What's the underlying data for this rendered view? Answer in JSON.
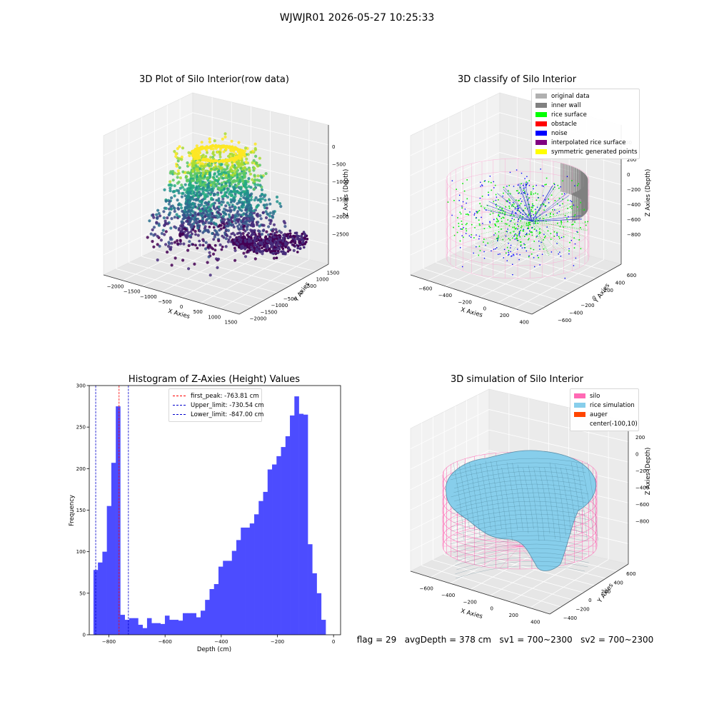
{
  "page": {
    "suptitle": "WJWJR01 2026-05-27 10:25:33",
    "footer": {
      "flag": "flag = 29",
      "avg_depth": "avgDepth = 378 cm",
      "sv1": "sv1 = 700~2300",
      "sv2": "sv2 = 700~2300"
    }
  },
  "chart_data": [
    {
      "type": "scatter",
      "title": "3D Plot of Silo Interior(row data)",
      "xlabel": "X Axies",
      "ylabel": "Y Axies",
      "zlabel": "Z Axies (Depth)",
      "xticks": [
        "−2000",
        "−1500",
        "−1000",
        "−500",
        "0",
        "500",
        "1000",
        "1500"
      ],
      "yticks": [
        "−2000",
        "−1500",
        "−1000",
        "−500",
        "0",
        "500",
        "1000",
        "1500"
      ],
      "zticks": [
        "0",
        "−500",
        "−1000",
        "−1500",
        "−2000",
        "−2500"
      ],
      "xlim": [
        -2000,
        1500
      ],
      "ylim": [
        -2000,
        1500
      ],
      "zlim": [
        -2700,
        0
      ],
      "colormap": "viridis"
    },
    {
      "type": "scatter",
      "title": "3D classify of Silo Interior",
      "xlabel": "X Axies",
      "ylabel": "Y Axies",
      "zlabel": "Z Axies (Depth)",
      "xticks": [
        "−600",
        "−400",
        "−200",
        "0",
        "200",
        "400"
      ],
      "yticks": [
        "−600",
        "−400",
        "−200",
        "0",
        "200",
        "400",
        "600"
      ],
      "zticks": [
        "200",
        "0",
        "−200",
        "−400",
        "−600",
        "−800"
      ],
      "zticks_extra": "00",
      "legend": [
        {
          "label": "original data",
          "color": "#b0b0b0"
        },
        {
          "label": "inner wall",
          "color": "#808080"
        },
        {
          "label": "rice surface",
          "color": "#00ff00"
        },
        {
          "label": "obstacle",
          "color": "#ff0000"
        },
        {
          "label": "noise",
          "color": "#0000ff"
        },
        {
          "label": "interpolated rice surface",
          "color": "#800080"
        },
        {
          "label": "symmetric generated points",
          "color": "#ffff00"
        }
      ],
      "legend_position": "top-right"
    },
    {
      "type": "bar",
      "title": "Histogram of Z-Axies (Height) Values",
      "xlabel": "Depth (cm)",
      "ylabel": "Frequency",
      "xlim": [
        -870,
        25
      ],
      "ylim": [
        0,
        300
      ],
      "xticks": [
        -800,
        -600,
        -400,
        -200,
        0
      ],
      "xtick_labels": [
        "−800",
        "−600",
        "−400",
        "−200",
        "0"
      ],
      "yticks": [
        0,
        50,
        100,
        150,
        200,
        250,
        300
      ],
      "bin_width": 15.9,
      "bin_start": -855,
      "values": [
        78,
        87,
        100,
        155,
        207,
        275,
        24,
        18,
        20,
        20,
        12,
        8,
        20,
        14,
        14,
        13,
        23,
        18,
        18,
        17,
        26,
        26,
        26,
        21,
        29,
        42,
        55,
        61,
        82,
        89,
        89,
        101,
        114,
        129,
        129,
        134,
        145,
        161,
        172,
        199,
        205,
        215,
        226,
        239,
        264,
        287,
        266,
        265,
        109,
        74,
        50,
        18
      ],
      "bar_color": "#4c4cff",
      "vlines": [
        {
          "label": "first_peak: -763.81 cm",
          "x": -763.81,
          "color": "#ff0000"
        },
        {
          "label": "Upper_limit: -730.54 cm",
          "x": -730.54,
          "color": "#0000cc"
        },
        {
          "label": "Lower_limit: -847.00 cm",
          "x": -847.0,
          "color": "#0000cc"
        }
      ],
      "legend_position": "top-center",
      "grid": false
    },
    {
      "type": "area",
      "title": "3D simulation of Silo Interior",
      "xlabel": "X Axies",
      "ylabel": "Y Axies",
      "zlabel": "Z Axies (Depth)",
      "xticks": [
        "−600",
        "−400",
        "−200",
        "0",
        "200",
        "400"
      ],
      "yticks": [
        "−400",
        "−200",
        "0",
        "200",
        "400",
        "600"
      ],
      "zticks": [
        "200",
        "0",
        "−200",
        "−400",
        "−600",
        "−800"
      ],
      "legend": [
        {
          "label": "silo",
          "color": "#ff69b4"
        },
        {
          "label": "rice simulation",
          "color": "#87ceeb"
        },
        {
          "label": "auger",
          "color": "#ff4500"
        },
        {
          "label": "center(-100,10)",
          "color": ""
        }
      ],
      "legend_position": "top-right"
    }
  ]
}
